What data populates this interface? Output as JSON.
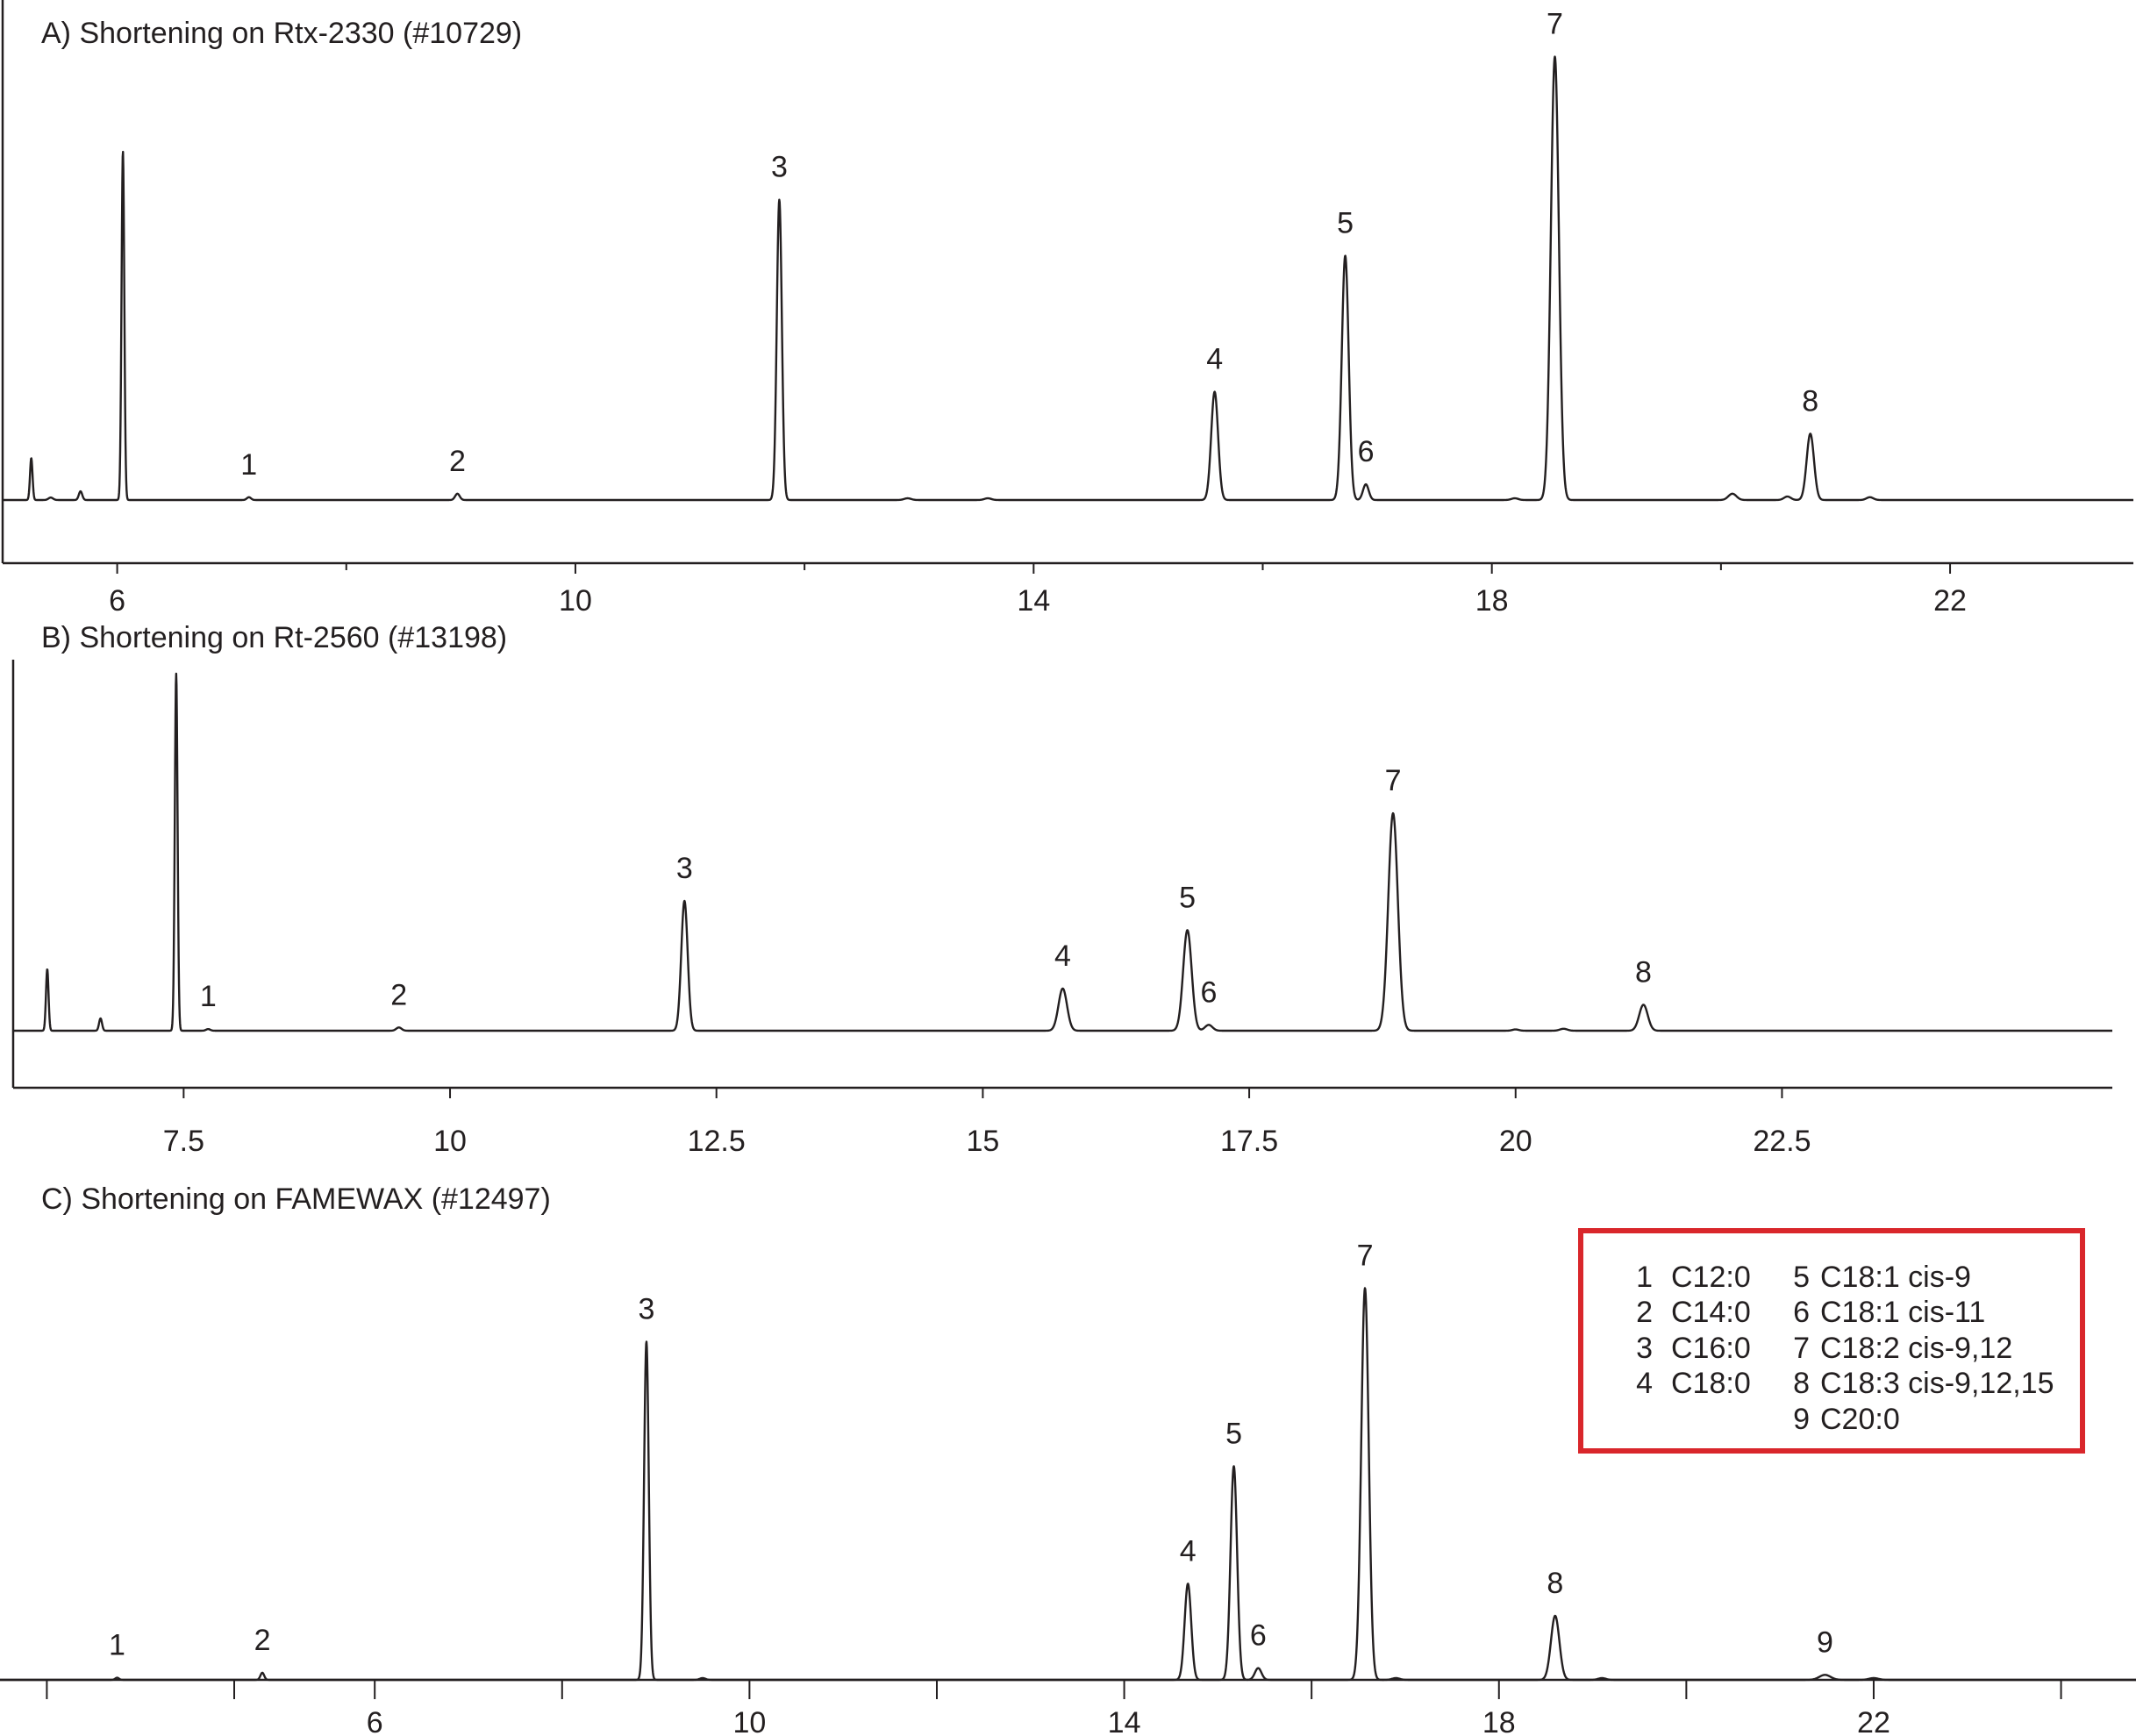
{
  "chart_data": [
    {
      "type": "line",
      "title": "A) Shortening on Rtx-2330 (#10729)",
      "xlabel": "",
      "ylabel": "",
      "xlim": [
        5.0,
        23.6
      ],
      "x_ticks_major": [
        6,
        10,
        14,
        18,
        22
      ],
      "x_ticks_minor": [
        8,
        12,
        16,
        20
      ],
      "grid": false,
      "peaks": [
        {
          "x": 5.25,
          "h": 0.12,
          "w": 0.011
        },
        {
          "x": 5.42,
          "h": 0.007,
          "w": 0.02
        },
        {
          "x": 5.68,
          "h": 0.025,
          "w": 0.015
        },
        {
          "x": 6.05,
          "h": 1.0,
          "w": 0.012
        },
        {
          "x": 7.15,
          "h": 0.008,
          "w": 0.018,
          "label": "1"
        },
        {
          "x": 8.97,
          "h": 0.018,
          "w": 0.02,
          "label": "2"
        },
        {
          "x": 11.78,
          "h": 0.86,
          "w": 0.022,
          "label": "3"
        },
        {
          "x": 12.9,
          "h": 0.005,
          "w": 0.03
        },
        {
          "x": 13.6,
          "h": 0.005,
          "w": 0.03
        },
        {
          "x": 15.58,
          "h": 0.31,
          "w": 0.03,
          "label": "4"
        },
        {
          "x": 16.72,
          "h": 0.7,
          "w": 0.03,
          "label": "5"
        },
        {
          "x": 16.9,
          "h": 0.045,
          "w": 0.025,
          "label": "6"
        },
        {
          "x": 18.2,
          "h": 0.005,
          "w": 0.03
        },
        {
          "x": 18.55,
          "h": 1.27,
          "w": 0.035,
          "label": "7"
        },
        {
          "x": 20.1,
          "h": 0.018,
          "w": 0.035
        },
        {
          "x": 20.58,
          "h": 0.01,
          "w": 0.03
        },
        {
          "x": 20.78,
          "h": 0.19,
          "w": 0.032,
          "label": "8"
        },
        {
          "x": 21.3,
          "h": 0.008,
          "w": 0.03
        }
      ]
    },
    {
      "type": "line",
      "title": "B) Shortening on Rt-2560 (#13198)",
      "xlabel": "",
      "ylabel": "",
      "xlim": [
        5.9,
        25.6
      ],
      "x_ticks_major": [
        7.5,
        10,
        12.5,
        15,
        17.5,
        20,
        22.5
      ],
      "x_ticks_minor": [],
      "grid": false,
      "peaks": [
        {
          "x": 6.22,
          "h": 0.19,
          "w": 0.012
        },
        {
          "x": 6.72,
          "h": 0.038,
          "w": 0.014
        },
        {
          "x": 7.43,
          "h": 1.1,
          "w": 0.013
        },
        {
          "x": 7.73,
          "h": 0.005,
          "w": 0.02,
          "label": "1"
        },
        {
          "x": 9.52,
          "h": 0.01,
          "w": 0.025,
          "label": "2"
        },
        {
          "x": 12.2,
          "h": 0.4,
          "w": 0.03,
          "label": "3"
        },
        {
          "x": 15.75,
          "h": 0.13,
          "w": 0.04,
          "label": "4"
        },
        {
          "x": 16.92,
          "h": 0.31,
          "w": 0.04,
          "label": "5"
        },
        {
          "x": 17.12,
          "h": 0.018,
          "w": 0.035,
          "label": "6"
        },
        {
          "x": 18.85,
          "h": 0.67,
          "w": 0.045,
          "label": "7"
        },
        {
          "x": 20.0,
          "h": 0.004,
          "w": 0.03
        },
        {
          "x": 20.45,
          "h": 0.006,
          "w": 0.035
        },
        {
          "x": 21.2,
          "h": 0.08,
          "w": 0.04,
          "label": "8"
        }
      ]
    },
    {
      "type": "line",
      "title": "C) Shortening on FAMEWAX (#12497)",
      "xlabel": "",
      "ylabel": "",
      "xlim": [
        2.0,
        24.8
      ],
      "x_ticks_major": [
        6,
        10,
        14,
        18,
        22
      ],
      "x_ticks_minor": [
        2.5,
        4.5,
        8,
        12,
        16,
        20,
        24
      ],
      "grid": false,
      "peaks": [
        {
          "x": 3.25,
          "h": 0.006,
          "w": 0.02,
          "label": "1"
        },
        {
          "x": 4.8,
          "h": 0.02,
          "w": 0.02,
          "label": "2"
        },
        {
          "x": 8.9,
          "h": 0.95,
          "w": 0.025,
          "label": "3"
        },
        {
          "x": 9.5,
          "h": 0.005,
          "w": 0.03
        },
        {
          "x": 14.68,
          "h": 0.27,
          "w": 0.035,
          "label": "4"
        },
        {
          "x": 15.17,
          "h": 0.6,
          "w": 0.035,
          "label": "5"
        },
        {
          "x": 15.43,
          "h": 0.033,
          "w": 0.035,
          "label": "6"
        },
        {
          "x": 16.57,
          "h": 1.1,
          "w": 0.04,
          "label": "7"
        },
        {
          "x": 16.9,
          "h": 0.005,
          "w": 0.04
        },
        {
          "x": 18.6,
          "h": 0.18,
          "w": 0.045,
          "label": "8"
        },
        {
          "x": 19.1,
          "h": 0.005,
          "w": 0.04
        },
        {
          "x": 21.48,
          "h": 0.014,
          "w": 0.06,
          "label": "9"
        },
        {
          "x": 22.0,
          "h": 0.005,
          "w": 0.05
        }
      ]
    }
  ],
  "legend": {
    "placement": "top-right of panel C",
    "border_color": "#d9262b",
    "left": [
      {
        "num": "1",
        "name": "C12:0"
      },
      {
        "num": "2",
        "name": "C14:0"
      },
      {
        "num": "3",
        "name": "C16:0"
      },
      {
        "num": "4",
        "name": "C18:0"
      }
    ],
    "right": [
      {
        "num": "5",
        "name": "C18:1 cis-9"
      },
      {
        "num": "6",
        "name": "C18:1 cis-11"
      },
      {
        "num": "7",
        "name": "C18:2 cis-9,12"
      },
      {
        "num": "8",
        "name": "C18:3 cis-9,12,15"
      },
      {
        "num": "9",
        "name": "C20:0"
      }
    ]
  },
  "colors": {
    "trace": "#231f20",
    "axis": "#231f20",
    "legend_border": "#d9262b"
  }
}
